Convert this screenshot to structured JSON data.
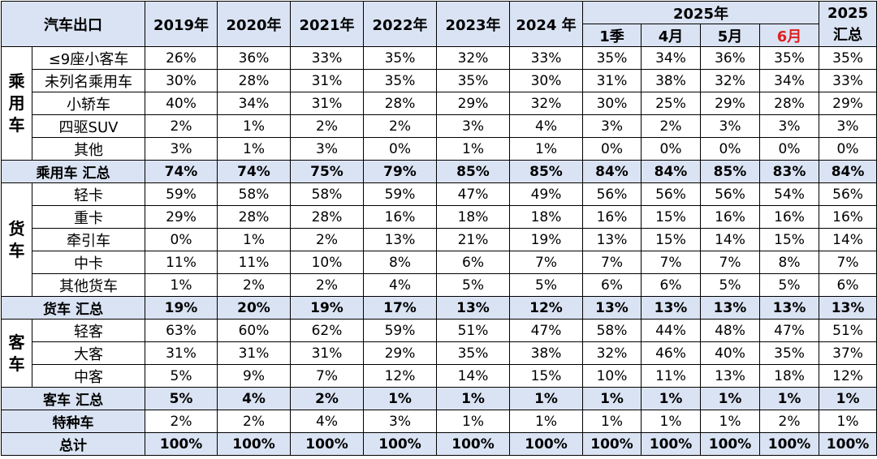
{
  "header": {
    "corner": "汽车出口",
    "years": [
      "2019年",
      "2020年",
      "2021年",
      "2022年",
      "2023年",
      "2024 年"
    ],
    "group_2025": "2025年",
    "sub_2025": [
      "1季",
      "4月",
      "5月",
      "6月"
    ],
    "total_2025": "2025\n汇总",
    "highlight_color": "#e02020"
  },
  "groups": [
    {
      "category": "乘用车",
      "rows": [
        {
          "label": "≤9座小客车",
          "values": [
            "26%",
            "36%",
            "33%",
            "35%",
            "32%",
            "33%",
            "35%",
            "34%",
            "36%",
            "35%",
            "35%"
          ]
        },
        {
          "label": "未列名乘用车",
          "values": [
            "30%",
            "28%",
            "31%",
            "35%",
            "35%",
            "30%",
            "31%",
            "38%",
            "32%",
            "34%",
            "33%"
          ]
        },
        {
          "label": "小轿车",
          "values": [
            "40%",
            "34%",
            "31%",
            "28%",
            "29%",
            "32%",
            "30%",
            "25%",
            "29%",
            "28%",
            "29%"
          ]
        },
        {
          "label": "四驱SUV",
          "values": [
            "2%",
            "1%",
            "2%",
            "2%",
            "3%",
            "4%",
            "3%",
            "2%",
            "3%",
            "3%",
            "3%"
          ]
        },
        {
          "label": "其他",
          "values": [
            "3%",
            "1%",
            "3%",
            "0%",
            "1%",
            "1%",
            "0%",
            "0%",
            "0%",
            "0%",
            "0%"
          ]
        }
      ],
      "total": {
        "label": "乘用车 汇总",
        "values": [
          "74%",
          "74%",
          "75%",
          "79%",
          "85%",
          "85%",
          "84%",
          "84%",
          "85%",
          "83%",
          "84%"
        ]
      }
    },
    {
      "category": "货车",
      "rows": [
        {
          "label": "轻卡",
          "values": [
            "59%",
            "58%",
            "58%",
            "59%",
            "47%",
            "49%",
            "56%",
            "56%",
            "56%",
            "54%",
            "56%"
          ]
        },
        {
          "label": "重卡",
          "values": [
            "29%",
            "28%",
            "28%",
            "16%",
            "18%",
            "18%",
            "16%",
            "15%",
            "16%",
            "16%",
            "16%"
          ]
        },
        {
          "label": "牵引车",
          "values": [
            "0%",
            "1%",
            "2%",
            "13%",
            "21%",
            "19%",
            "13%",
            "15%",
            "14%",
            "15%",
            "14%"
          ]
        },
        {
          "label": "中卡",
          "values": [
            "11%",
            "11%",
            "10%",
            "8%",
            "6%",
            "7%",
            "7%",
            "7%",
            "7%",
            "8%",
            "7%"
          ]
        },
        {
          "label": "其他货车",
          "values": [
            "1%",
            "2%",
            "2%",
            "4%",
            "5%",
            "5%",
            "6%",
            "6%",
            "5%",
            "5%",
            "6%"
          ]
        }
      ],
      "total": {
        "label": "货车 汇总",
        "values": [
          "19%",
          "20%",
          "19%",
          "17%",
          "13%",
          "12%",
          "13%",
          "13%",
          "13%",
          "13%",
          "13%"
        ]
      }
    },
    {
      "category": "客车",
      "rows": [
        {
          "label": "轻客",
          "values": [
            "63%",
            "60%",
            "62%",
            "59%",
            "51%",
            "47%",
            "58%",
            "44%",
            "48%",
            "47%",
            "51%"
          ]
        },
        {
          "label": "大客",
          "values": [
            "31%",
            "31%",
            "31%",
            "29%",
            "35%",
            "38%",
            "32%",
            "46%",
            "40%",
            "35%",
            "37%"
          ]
        },
        {
          "label": "中客",
          "values": [
            "5%",
            "9%",
            "7%",
            "12%",
            "14%",
            "15%",
            "10%",
            "11%",
            "13%",
            "18%",
            "12%"
          ]
        }
      ],
      "total": {
        "label": "客车 汇总",
        "values": [
          "5%",
          "4%",
          "2%",
          "1%",
          "1%",
          "1%",
          "1%",
          "1%",
          "1%",
          "1%",
          "1%"
        ]
      }
    }
  ],
  "special": {
    "label": "特种车",
    "values": [
      "2%",
      "2%",
      "4%",
      "3%",
      "1%",
      "1%",
      "1%",
      "1%",
      "1%",
      "2%",
      "1%"
    ]
  },
  "grand_total": {
    "label": "总计",
    "values": [
      "100%",
      "100%",
      "100%",
      "100%",
      "100%",
      "100%",
      "100%",
      "100%",
      "100%",
      "100%",
      "100%"
    ]
  }
}
